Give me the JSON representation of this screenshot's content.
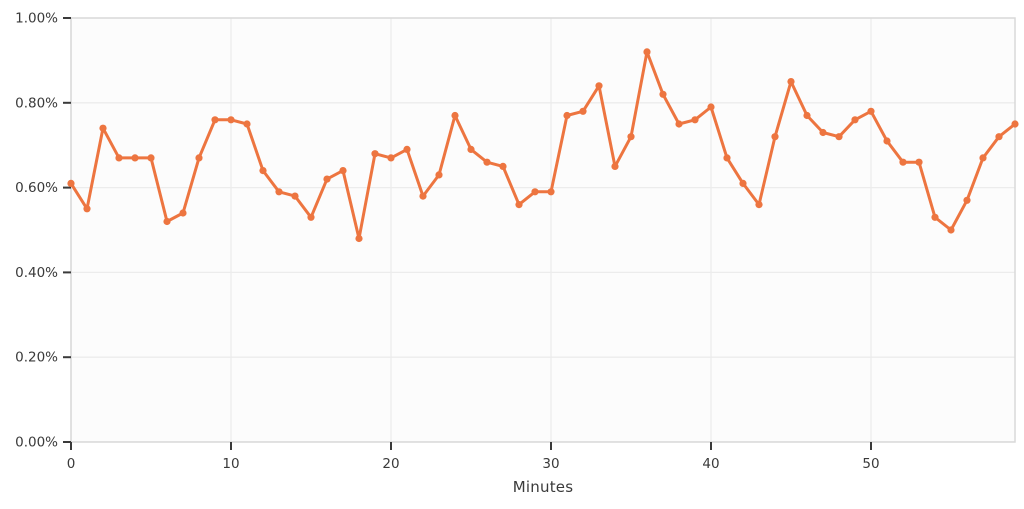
{
  "chart_data": {
    "type": "line",
    "title": "",
    "xlabel": "Minutes",
    "ylabel": "",
    "legend": "none",
    "grid": true,
    "unit": "%",
    "xlim": [
      0,
      59
    ],
    "ylim": [
      0,
      1.0
    ],
    "x_ticks": [
      {
        "v": 0,
        "label": "0"
      },
      {
        "v": 10,
        "label": "10"
      },
      {
        "v": 20,
        "label": "20"
      },
      {
        "v": 30,
        "label": "30"
      },
      {
        "v": 40,
        "label": "40"
      },
      {
        "v": 50,
        "label": "50"
      }
    ],
    "y_ticks": [
      {
        "v": 0.0,
        "label": "0.00%"
      },
      {
        "v": 0.2,
        "label": "0.20%"
      },
      {
        "v": 0.4,
        "label": "0.40%"
      },
      {
        "v": 0.6,
        "label": "0.60%"
      },
      {
        "v": 0.8,
        "label": "0.80%"
      },
      {
        "v": 1.0,
        "label": "1.00%"
      }
    ],
    "x": [
      0,
      1,
      2,
      3,
      4,
      5,
      6,
      7,
      8,
      9,
      10,
      11,
      12,
      13,
      14,
      15,
      16,
      17,
      18,
      19,
      20,
      21,
      22,
      23,
      24,
      25,
      26,
      27,
      28,
      29,
      30,
      31,
      32,
      33,
      34,
      35,
      36,
      37,
      38,
      39,
      40,
      41,
      42,
      43,
      44,
      45,
      46,
      47,
      48,
      49,
      50,
      51,
      52,
      53,
      54,
      55,
      56,
      57,
      58,
      59
    ],
    "y": [
      0.61,
      0.55,
      0.74,
      0.67,
      0.67,
      0.67,
      0.52,
      0.54,
      0.67,
      0.76,
      0.76,
      0.75,
      0.64,
      0.59,
      0.58,
      0.53,
      0.62,
      0.64,
      0.48,
      0.68,
      0.67,
      0.69,
      0.58,
      0.63,
      0.77,
      0.69,
      0.66,
      0.65,
      0.56,
      0.59,
      0.59,
      0.77,
      0.78,
      0.84,
      0.65,
      0.72,
      0.92,
      0.82,
      0.75,
      0.76,
      0.79,
      0.67,
      0.61,
      0.56,
      0.72,
      0.85,
      0.77,
      0.73,
      0.72,
      0.76,
      0.78,
      0.71,
      0.66,
      0.66,
      0.53,
      0.5,
      0.57,
      0.67,
      0.72,
      0.75
    ],
    "colors": {
      "line": "#ed7540",
      "marker": "#ed7540",
      "grid": "#ececec",
      "spine": "#d9d9d9",
      "tick_mark": "#3a3a3a",
      "tick_label": "#3a3a3a",
      "axis_label": "#3a3a3a",
      "plot_background": "#fcfcfc",
      "figure_background": "#ffffff"
    }
  }
}
